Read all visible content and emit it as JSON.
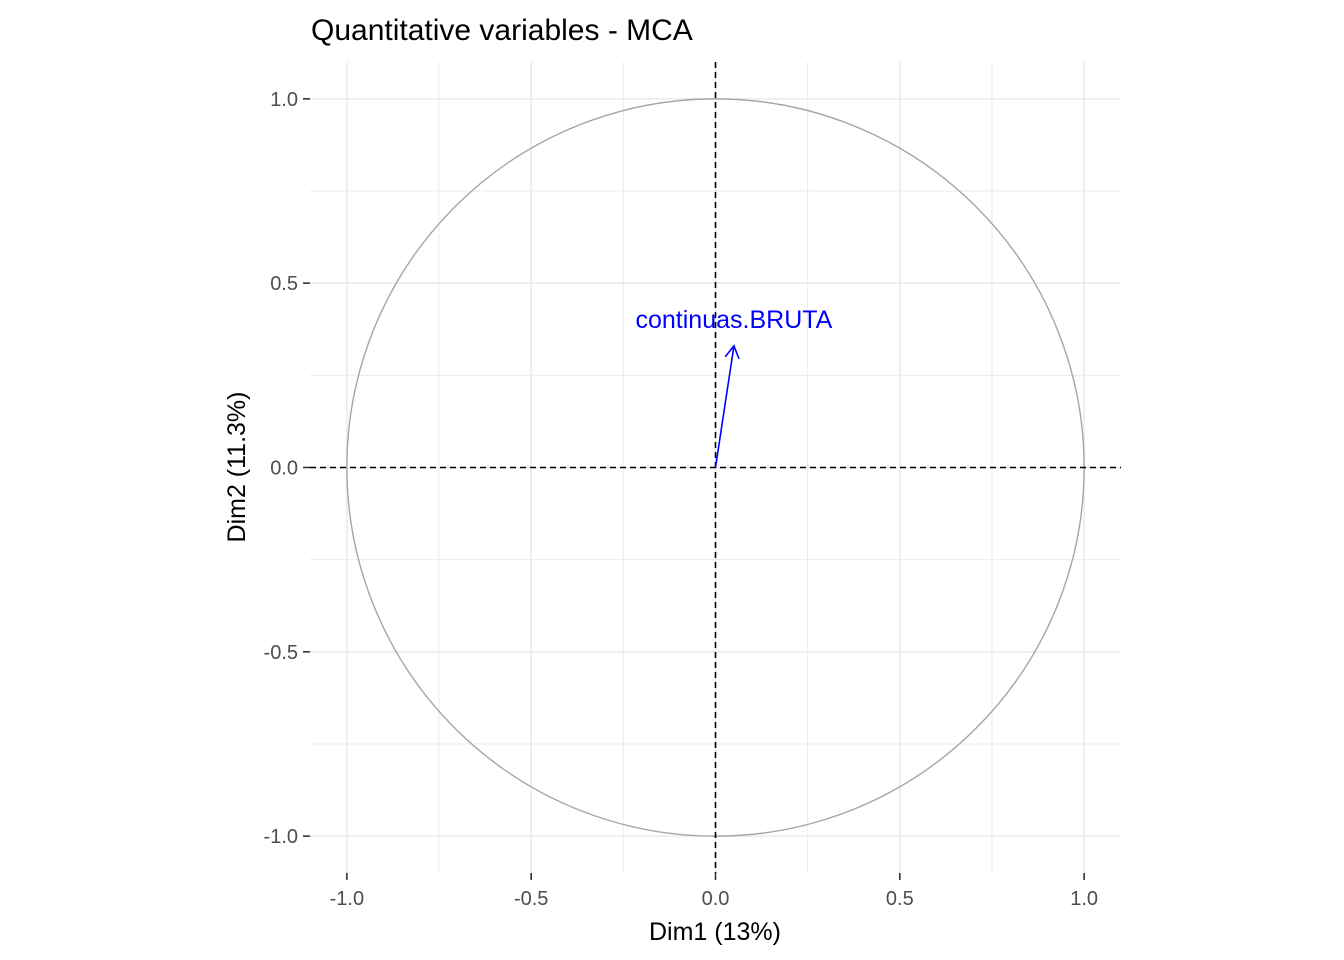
{
  "chart_data": {
    "type": "scatter",
    "title": "Quantitative variables - MCA",
    "xlabel": "Dim1 (13%)",
    "ylabel": "Dim2 (11.3%)",
    "xlim": [
      -1.1,
      1.1
    ],
    "ylim": [
      -1.1,
      1.1
    ],
    "x_ticks": [
      -1.0,
      -0.5,
      0.0,
      0.5,
      1.0
    ],
    "y_ticks": [
      -1.0,
      -0.5,
      0.0,
      0.5,
      1.0
    ],
    "x_tick_labels": [
      "-1.0",
      "-0.5",
      "0.0",
      "0.5",
      "1.0"
    ],
    "y_tick_labels": [
      "-1.0",
      "-0.5",
      "0.0",
      "0.5",
      "1.0"
    ],
    "grid": true,
    "correlation_circle": {
      "center": [
        0,
        0
      ],
      "radius": 1
    },
    "reference_lines": {
      "x": 0,
      "y": 0,
      "style": "dashed"
    },
    "variables": [
      {
        "label": "continuas.BRUTA",
        "x": 0.05,
        "y": 0.33
      }
    ],
    "colors": {
      "arrow": "#0000ff",
      "circle": "#a6a6a6",
      "grid": "#ebebeb",
      "axis_text": "#4d4d4d",
      "text": "#000000"
    }
  }
}
